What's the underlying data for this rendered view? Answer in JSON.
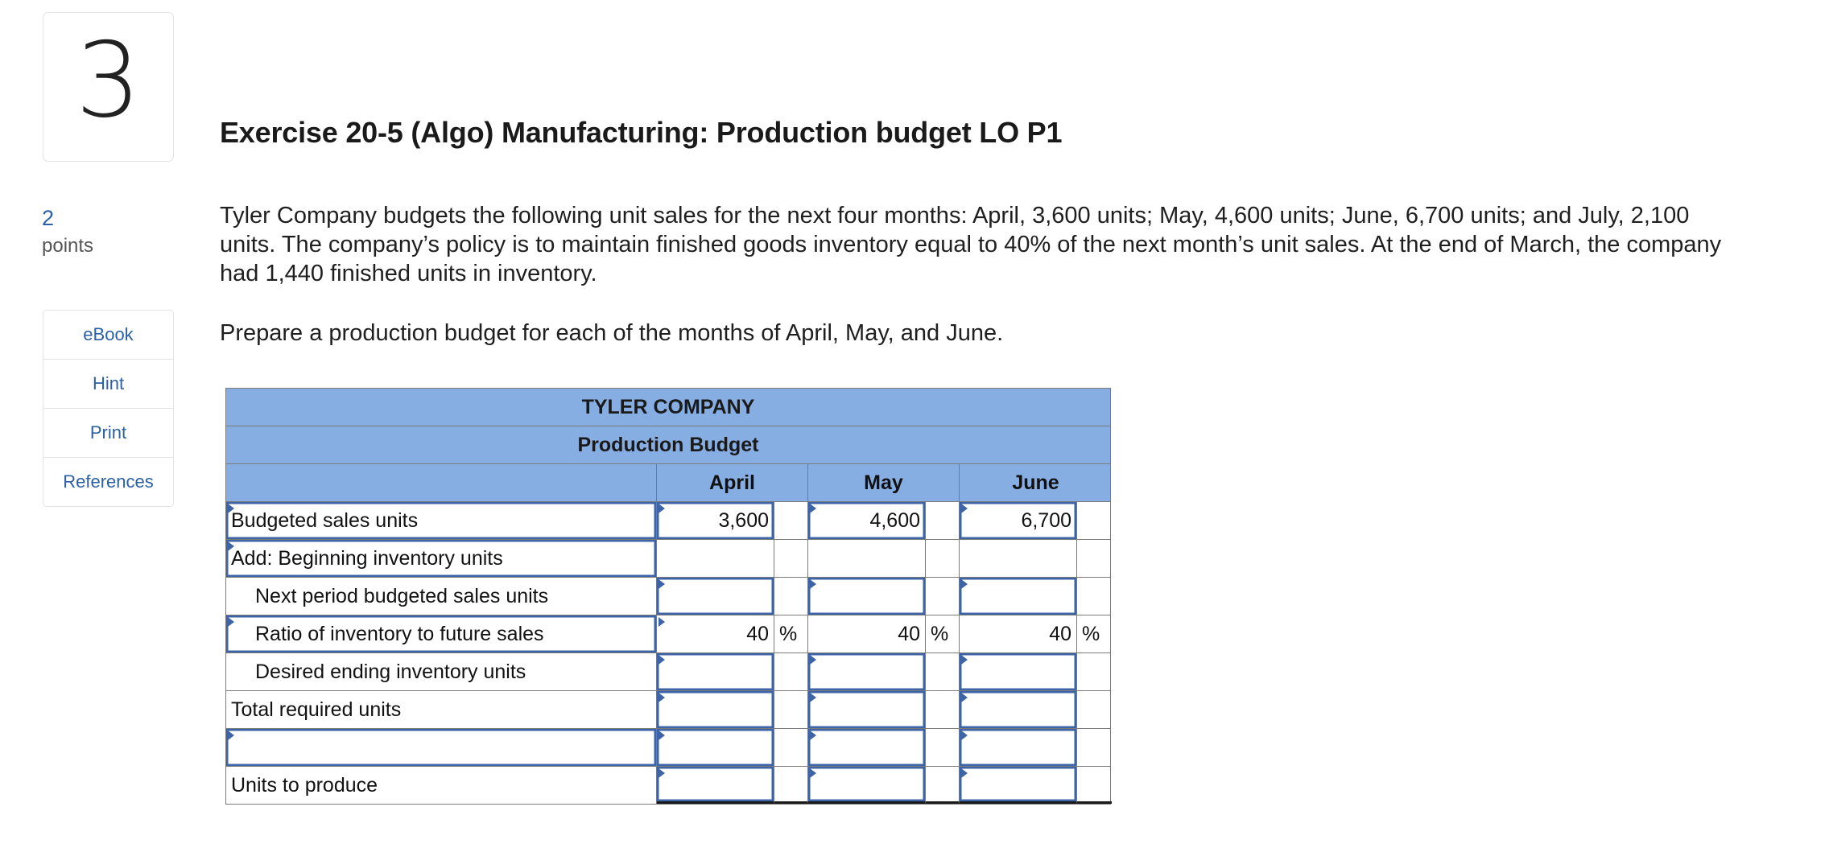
{
  "question": {
    "number": "3",
    "points_value": "2",
    "points_label": "points"
  },
  "side_tools": [
    {
      "label": "eBook"
    },
    {
      "label": "Hint"
    },
    {
      "label": "Print"
    },
    {
      "label": "References"
    }
  ],
  "exercise": {
    "title": "Exercise 20-5 (Algo) Manufacturing: Production budget LO P1",
    "problem": "Tyler Company budgets the following unit sales for the next four months: April, 3,600 units; May, 4,600 units; June, 6,700 units; and July, 2,100 units. The company’s policy is to maintain finished goods inventory equal to 40% of the next month’s unit sales. At the end of March, the company had 1,440 finished units in inventory.",
    "instruction": "Prepare a production budget for each of the months of April, May, and June."
  },
  "budget_table": {
    "company": "TYLER COMPANY",
    "title": "Production Budget",
    "months": [
      "April",
      "May",
      "June"
    ],
    "rows": [
      {
        "label": "Budgeted sales units",
        "values": [
          "3,600",
          "4,600",
          "6,700"
        ],
        "unit": ""
      },
      {
        "label": "Add: Beginning inventory units",
        "values": [
          "",
          "",
          ""
        ],
        "unit": ""
      },
      {
        "label": "Next period budgeted sales units",
        "values": [
          "",
          "",
          ""
        ],
        "unit": ""
      },
      {
        "label": "Ratio of inventory to future sales",
        "values": [
          "40",
          "40",
          "40"
        ],
        "unit": "%"
      },
      {
        "label": "Desired ending inventory units",
        "values": [
          "",
          "",
          ""
        ],
        "unit": ""
      },
      {
        "label": "Total required units",
        "values": [
          "",
          "",
          ""
        ],
        "unit": ""
      },
      {
        "label": "",
        "values": [
          "",
          "",
          ""
        ],
        "unit": ""
      },
      {
        "label": "Units to produce",
        "values": [
          "",
          "",
          ""
        ],
        "unit": ""
      }
    ]
  }
}
